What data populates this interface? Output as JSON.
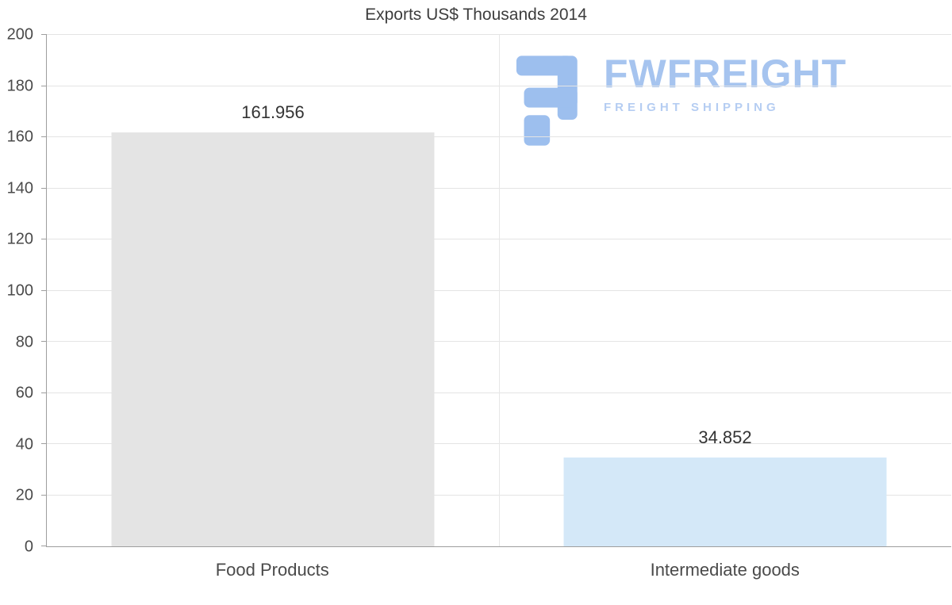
{
  "chart_data": {
    "type": "bar",
    "title": "Exports US$ Thousands 2014",
    "categories": [
      "Food Products",
      "Intermediate goods"
    ],
    "values": [
      161.956,
      34.852
    ],
    "value_labels": [
      "161.956",
      "34.852"
    ],
    "bar_colors": [
      "#e4e4e4",
      "#d4e8f8"
    ],
    "ylim": [
      0,
      200
    ],
    "ytick_step": 20,
    "yticks": [
      0,
      20,
      40,
      60,
      80,
      100,
      120,
      140,
      160,
      180,
      200
    ],
    "xlabel": "",
    "ylabel": "",
    "grid": "horizontal",
    "legend": "none"
  },
  "watermark": {
    "brand": "FWFREIGHT",
    "tagline": "FREIGHT SHIPPING",
    "brand_color": "#a6c4ef",
    "tagline_color": "#b5cdf2",
    "icon_color": "#9dbfee",
    "icon": "fwfreight-logo-icon"
  }
}
